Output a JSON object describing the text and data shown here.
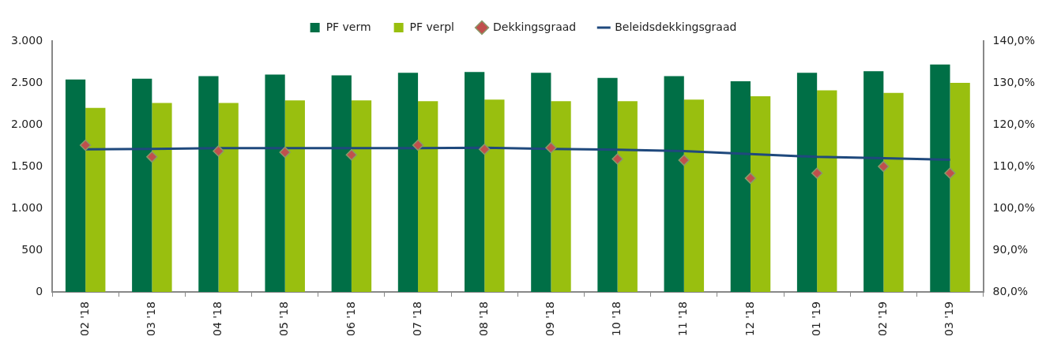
{
  "chart_data": {
    "type": "bar",
    "categories": [
      "02 '18",
      "03 '18",
      "04 '18",
      "05 '18",
      "06 '18",
      "07 '18",
      "08 '18",
      "09 '18",
      "10 '18",
      "11 '18",
      "12 '18",
      "01 '19",
      "02 '19",
      "03 '19"
    ],
    "series": [
      {
        "name": "PF verm",
        "color": "#006f46",
        "values": [
          2540,
          2550,
          2580,
          2600,
          2590,
          2620,
          2630,
          2620,
          2560,
          2580,
          2520,
          2620,
          2640,
          2720
        ]
      },
      {
        "name": "PF verpl",
        "color": "#99bf0f",
        "values": [
          2200,
          2260,
          2260,
          2290,
          2290,
          2280,
          2300,
          2280,
          2280,
          2300,
          2340,
          2410,
          2380,
          2500
        ]
      },
      {
        "name": "Dekkingsgraad",
        "type": "scatter",
        "axis": "y2",
        "marker": "diamond",
        "color": "#c0504d",
        "x": [
          "02 '18",
          "03 '18",
          "04 '18",
          "05 '18",
          "06 '18",
          "07 '18",
          "08 '18",
          "09 '18",
          "10 '18",
          "11 '18",
          "12 '18",
          "01 '19",
          "02 '19",
          "03 '19"
        ],
        "values": [
          115.1,
          112.3,
          113.7,
          113.4,
          112.8,
          115.1,
          114.1,
          114.5,
          111.8,
          111.5,
          107.2,
          108.4,
          110.0,
          108.4
        ]
      },
      {
        "name": "Beleidsdekkingsgraad",
        "type": "line",
        "axis": "y2",
        "marker": "none",
        "line_style": "solid",
        "color": "#1f497d",
        "values": [
          114.1,
          114.2,
          114.4,
          114.4,
          114.4,
          114.4,
          114.5,
          114.2,
          114.0,
          113.7,
          113.0,
          112.3,
          112.0,
          111.6
        ]
      }
    ],
    "ylim": [
      0,
      3000
    ],
    "yticks": [
      0,
      500,
      {
        "value": 1000,
        "label": "1.000"
      },
      {
        "value": 1500,
        "label": "1.500"
      },
      {
        "value": 2000,
        "label": "2.000"
      },
      {
        "value": 2500,
        "label": "2.500"
      },
      {
        "value": 3000,
        "label": "3.000"
      }
    ],
    "y2lim": [
      80,
      140
    ],
    "y2ticks": [
      {
        "value": 80,
        "label": "80,0%"
      },
      {
        "value": 90,
        "label": "90,0%"
      },
      {
        "value": 100,
        "label": "100,0%"
      },
      {
        "value": 110,
        "label": "110,0%"
      },
      {
        "value": 120,
        "label": "120,0%"
      },
      {
        "value": 130,
        "label": "130,0%"
      },
      {
        "value": 140,
        "label": "140,0%"
      }
    ],
    "grid": false,
    "legend": "top"
  }
}
